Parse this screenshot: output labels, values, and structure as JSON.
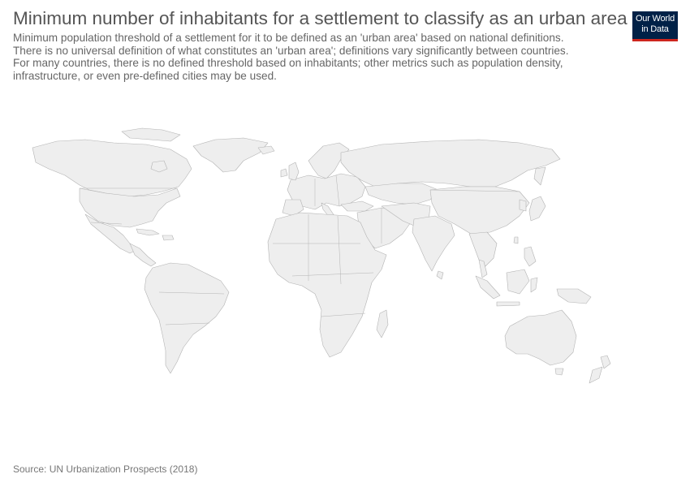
{
  "title": "Minimum number of inhabitants for a settlement to classify as an urban area",
  "subtitle": [
    "Minimum population threshold of a settlement for it to be defined as an 'urban area' based on national definitions.",
    "There is no universal definition of what constitutes an 'urban area'; definitions vary significantly between countries.",
    "For many countries, there is no defined threshold based on inhabitants; other metrics such as population density,",
    "infrastructure, or even pre-defined cities may be used."
  ],
  "logo": {
    "line1": "Our World",
    "line2": "in Data"
  },
  "source": "Source: UN Urbanization Prospects (2018)",
  "colors": {
    "land": "#eeeeee",
    "border": "#b3b3b3",
    "logo_bg": "#002147",
    "logo_accent": "#ce261e"
  }
}
